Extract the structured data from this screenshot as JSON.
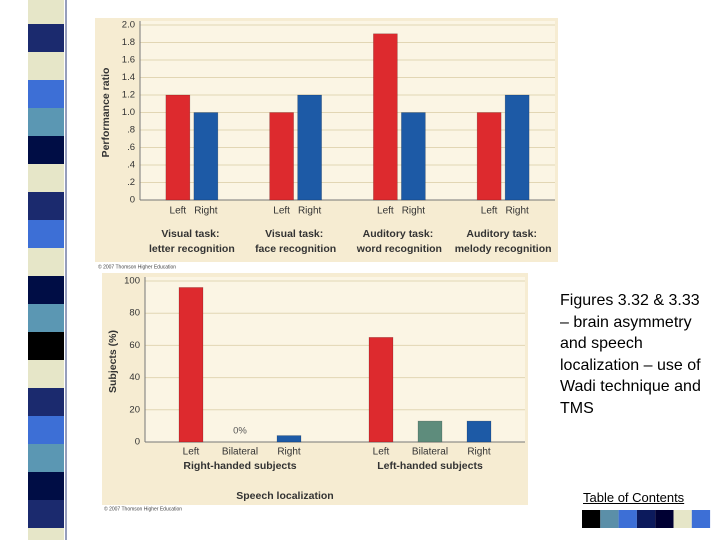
{
  "chart_data": [
    {
      "type": "bar",
      "y_label": "Performance ratio",
      "categories": [
        "Visual task: letter recognition",
        "Visual task: face recognition",
        "Auditory task: word recognition",
        "Auditory task: melody recognition"
      ],
      "series": [
        {
          "name": "Left",
          "color": "#dd2a2e",
          "values": [
            1.2,
            1.0,
            1.9,
            1.0
          ]
        },
        {
          "name": "Right",
          "color": "#1d5aa6",
          "values": [
            1.0,
            1.2,
            1.0,
            1.2
          ]
        }
      ],
      "ylim": [
        0,
        2
      ],
      "yticks": [
        0,
        {
          "value": 0.2,
          "label": ".2"
        },
        {
          "value": 0.4,
          "label": ".4"
        },
        {
          "value": 0.6,
          "label": ".6"
        },
        {
          "value": 0.8,
          "label": ".8"
        },
        {
          "value": 1,
          "label": "1.0"
        },
        1.2,
        1.4,
        1.6,
        1.8,
        {
          "value": 2,
          "label": "2.0"
        }
      ],
      "grid": true,
      "copyright": "© 2007 Thomson Higher Education"
    },
    {
      "type": "bar",
      "x_label": "Speech localization",
      "y_label": "Subjects (%)",
      "categories": [
        "Right-handed subjects",
        "Left-handed subjects"
      ],
      "series": [
        {
          "name": "Left",
          "color": "#dd2a2e",
          "values": [
            96,
            65
          ]
        },
        {
          "name": "Bilateral",
          "color": "#5e8c7c",
          "values": [
            0,
            13
          ],
          "value_labels": [
            "0%",
            null
          ]
        },
        {
          "name": "Right",
          "color": "#1d5aa6",
          "values": [
            4,
            13
          ]
        }
      ],
      "ylim": [
        0,
        100
      ],
      "yticks": [
        0,
        20,
        40,
        60,
        80,
        100
      ],
      "grid": true,
      "copyright": "© 2007 Thomson Higher Education"
    }
  ],
  "slide": {
    "caption": "Figures 3.32 & 3.33 – brain asymmetry and speech localization – use of Wadi technique and TMS",
    "toc_link": "Table of Contents"
  }
}
